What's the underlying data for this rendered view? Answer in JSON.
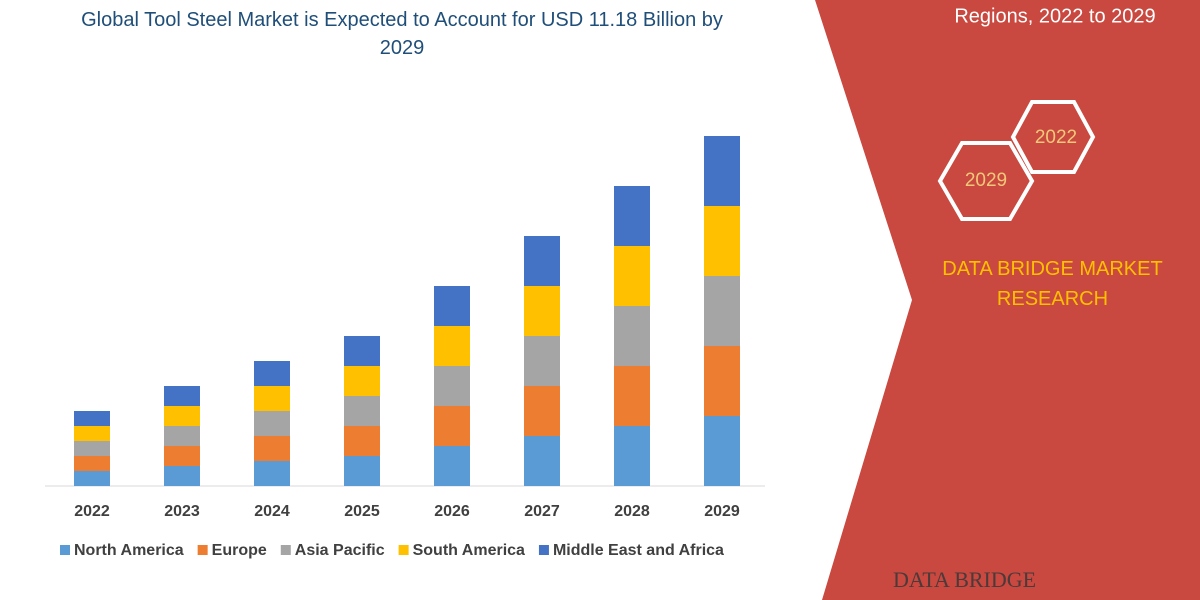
{
  "chart_data": {
    "type": "stacked_bar",
    "title": "Global Tool Steel Market is Expected to Account for USD 11.18 Billion by 2029",
    "categories": [
      "2022",
      "2023",
      "2024",
      "2025",
      "2026",
      "2027",
      "2028",
      "2029"
    ],
    "series": [
      {
        "name": "North America",
        "color": "#5b9bd5",
        "values": [
          1.5,
          2,
          2.5,
          3,
          4,
          5,
          6,
          7
        ]
      },
      {
        "name": "Europe",
        "color": "#ed7d31",
        "values": [
          1.5,
          2,
          2.5,
          3,
          4,
          5,
          6,
          7
        ]
      },
      {
        "name": "Asia Pacific",
        "color": "#a5a5a5",
        "values": [
          1.5,
          2,
          2.5,
          3,
          4,
          5,
          6,
          7
        ]
      },
      {
        "name": "South America",
        "color": "#ffc000",
        "values": [
          1.5,
          2,
          2.5,
          3,
          4,
          5,
          6,
          7
        ]
      },
      {
        "name": "Middle East and Africa",
        "color": "#4472c4",
        "values": [
          1.5,
          2,
          2.5,
          3,
          4,
          5,
          6,
          7
        ]
      }
    ],
    "legend": "bottom"
  },
  "panel": {
    "heading": "Regions, 2022 to 2029",
    "hex_back": "2022",
    "hex_front": "2029",
    "brand": "DATA BRIDGE MARKET RESEARCH",
    "logo": "DATA BRIDGE"
  }
}
